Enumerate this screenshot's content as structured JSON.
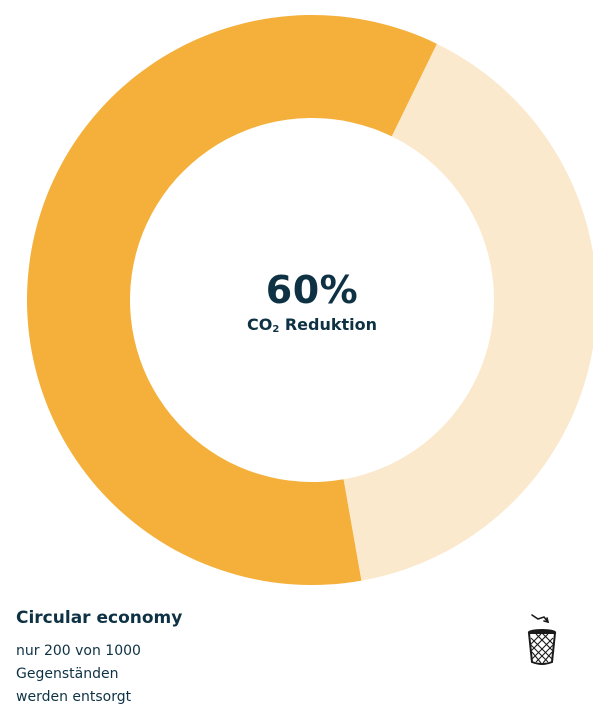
{
  "chart_data": {
    "type": "pie",
    "values": [
      60,
      40
    ],
    "center_value": "60%",
    "center_label_main": "CO",
    "center_label_sub": "2",
    "center_label_rest": " Reduktion",
    "colors": {
      "filled": "#f4b03a",
      "remaining": "#fbe9cd"
    }
  },
  "info": {
    "title": "Circular economy",
    "description_lines": [
      "nur 200 von 1000",
      "Gegenständen",
      "werden entsorgt"
    ],
    "icon": "trash-bin-icon"
  },
  "colors": {
    "text": "#0e3244"
  }
}
